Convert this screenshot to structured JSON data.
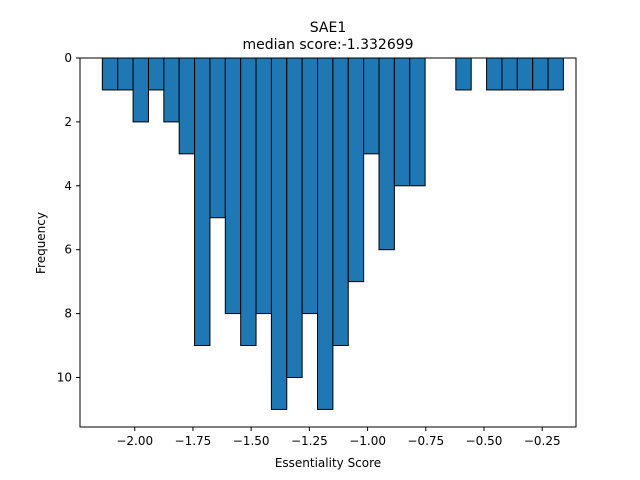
{
  "chart_data": {
    "type": "bar",
    "title": "SAE1",
    "subtitle": "median score:-1.332699",
    "xlabel": "Essentiality Score",
    "ylabel": "Frequency",
    "xlim": [
      -2.235,
      -0.105
    ],
    "ylim": [
      0,
      11.55
    ],
    "y_axis_inverted": true,
    "grid": false,
    "bar_color": "#1f77b4",
    "edge_color": "#000000",
    "x_ticks": [
      {
        "value": -2.0,
        "label": "−2.00"
      },
      {
        "value": -1.75,
        "label": "−1.75"
      },
      {
        "value": -1.5,
        "label": "−1.50"
      },
      {
        "value": -1.25,
        "label": "−1.25"
      },
      {
        "value": -1.0,
        "label": "−1.00"
      },
      {
        "value": -0.75,
        "label": "−0.75"
      },
      {
        "value": -0.5,
        "label": "−0.50"
      },
      {
        "value": -0.25,
        "label": "−0.25"
      }
    ],
    "y_ticks": [
      {
        "value": 0,
        "label": "0"
      },
      {
        "value": 2,
        "label": "2"
      },
      {
        "value": 4,
        "label": "4"
      },
      {
        "value": 6,
        "label": "6"
      },
      {
        "value": 8,
        "label": "8"
      },
      {
        "value": 10,
        "label": "10"
      }
    ],
    "bin_width": 0.066,
    "bins": [
      {
        "x0": -2.139,
        "count": 1
      },
      {
        "x0": -2.073,
        "count": 1
      },
      {
        "x0": -2.007,
        "count": 2
      },
      {
        "x0": -1.941,
        "count": 1
      },
      {
        "x0": -1.875,
        "count": 2
      },
      {
        "x0": -1.809,
        "count": 3
      },
      {
        "x0": -1.743,
        "count": 9
      },
      {
        "x0": -1.677,
        "count": 5
      },
      {
        "x0": -1.611,
        "count": 8
      },
      {
        "x0": -1.545,
        "count": 9
      },
      {
        "x0": -1.479,
        "count": 8
      },
      {
        "x0": -1.413,
        "count": 11
      },
      {
        "x0": -1.347,
        "count": 10
      },
      {
        "x0": -1.281,
        "count": 8
      },
      {
        "x0": -1.215,
        "count": 11
      },
      {
        "x0": -1.149,
        "count": 9
      },
      {
        "x0": -1.083,
        "count": 7
      },
      {
        "x0": -1.017,
        "count": 3
      },
      {
        "x0": -0.951,
        "count": 6
      },
      {
        "x0": -0.885,
        "count": 4
      },
      {
        "x0": -0.819,
        "count": 4
      },
      {
        "x0": -0.753,
        "count": 0
      },
      {
        "x0": -0.687,
        "count": 0
      },
      {
        "x0": -0.621,
        "count": 1
      },
      {
        "x0": -0.555,
        "count": 0
      },
      {
        "x0": -0.489,
        "count": 1
      },
      {
        "x0": -0.423,
        "count": 1
      },
      {
        "x0": -0.357,
        "count": 1
      },
      {
        "x0": -0.291,
        "count": 1
      },
      {
        "x0": -0.225,
        "count": 1
      }
    ]
  }
}
